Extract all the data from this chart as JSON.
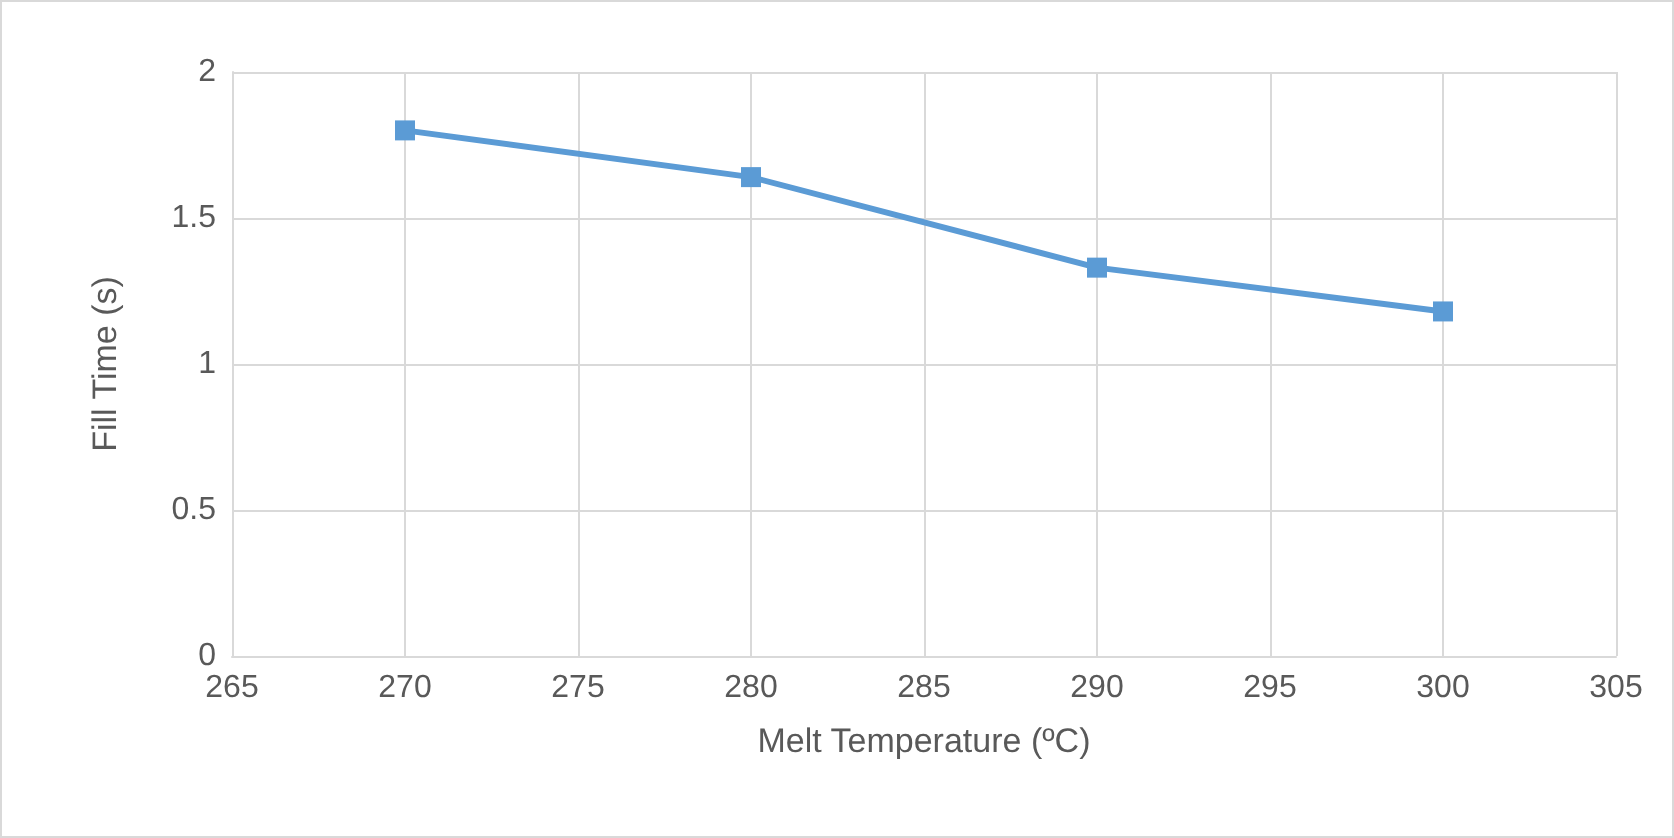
{
  "chart_data": {
    "type": "line",
    "xlabel": "Melt Temperature (ºC)",
    "ylabel": "Fill Time (s)",
    "x": [
      270,
      280,
      290,
      300
    ],
    "series": [
      {
        "color": "#5b9bd5",
        "values": [
          1.8,
          1.64,
          1.33,
          1.18
        ]
      }
    ],
    "xlim": [
      265,
      305
    ],
    "xticks": [
      265,
      270,
      275,
      280,
      285,
      290,
      295,
      300,
      305
    ],
    "ylim": [
      0,
      2
    ],
    "yticks": [
      0,
      0.5,
      1,
      1.5,
      2
    ],
    "grid": true,
    "marker": "square",
    "line_style": "solid"
  }
}
